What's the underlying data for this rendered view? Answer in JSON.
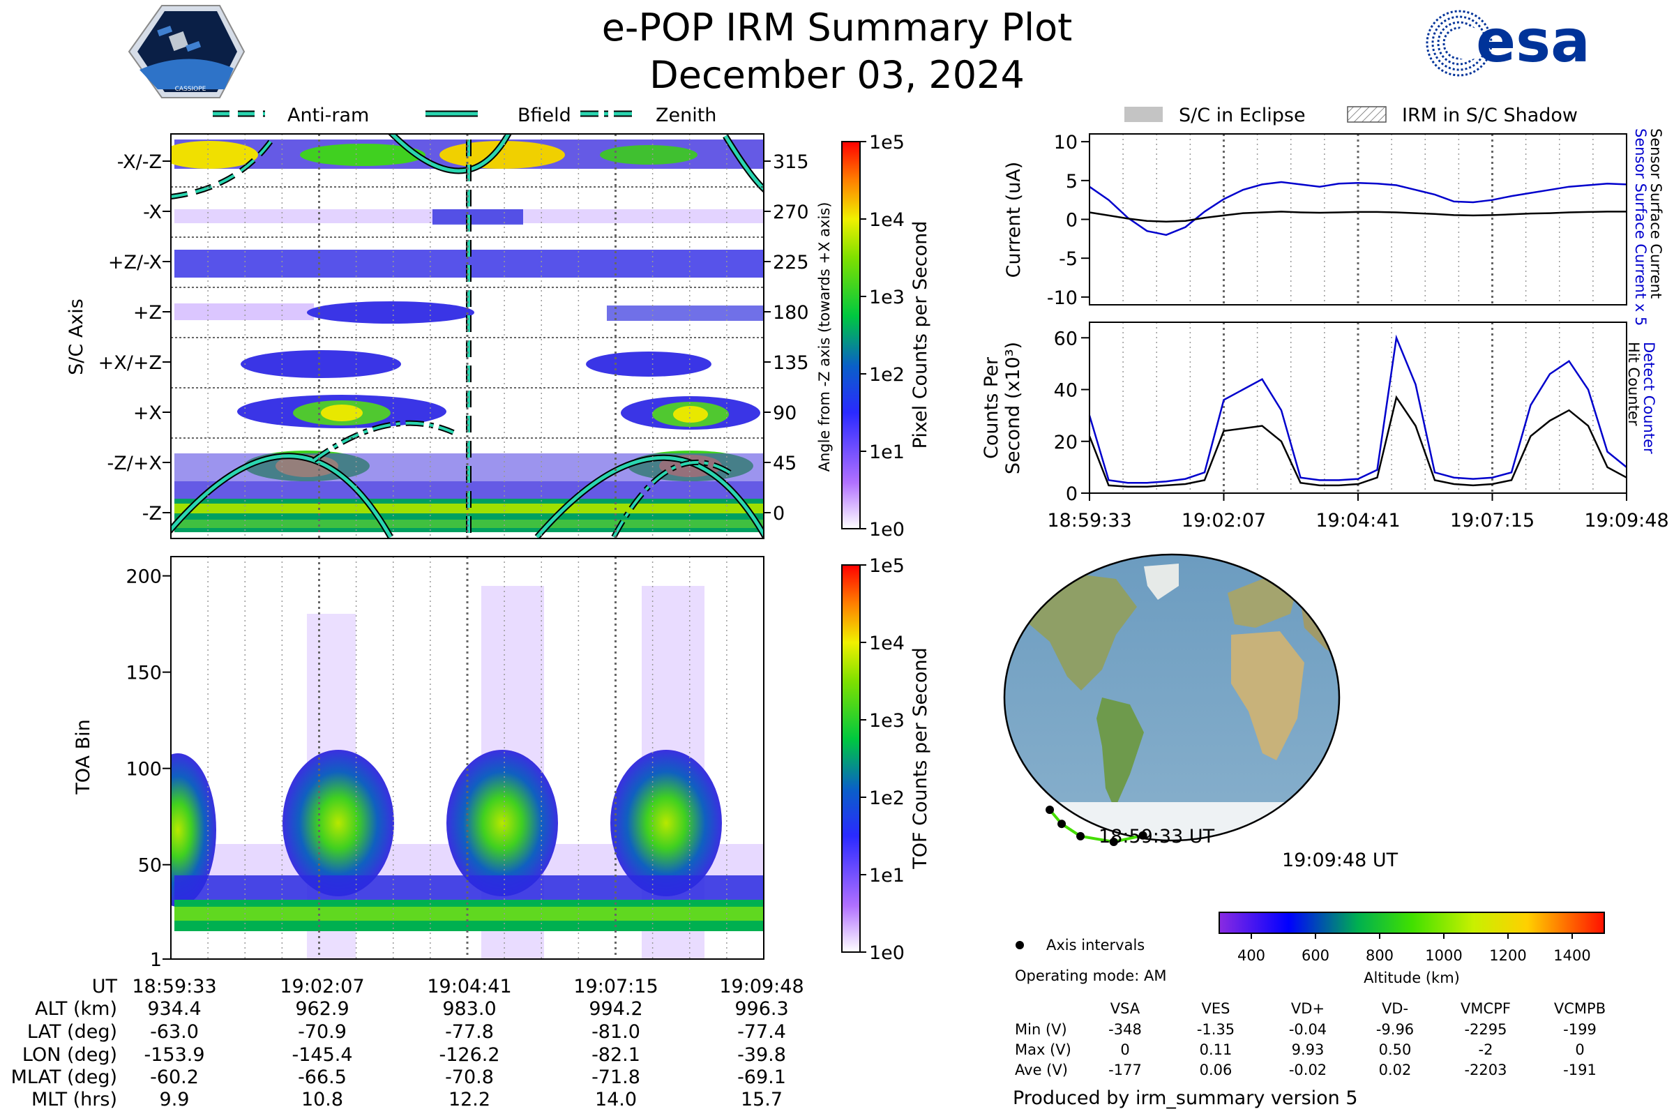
{
  "title": "e-POP IRM Summary Plot",
  "date": "December 03, 2024",
  "logos": {
    "left": "CASSIOPE",
    "right": "esa"
  },
  "legend_top_left": [
    "Anti-ram",
    "Bfield",
    "Zenith"
  ],
  "legend_top_right": [
    "S/C in Eclipse",
    "IRM in S/C Shadow"
  ],
  "colors": {
    "current_x5": "#0000cc",
    "current": "#000000",
    "track": "#44dd00",
    "guide": "#2ad6b0"
  },
  "chart_data": [
    {
      "id": "angle",
      "type": "heatmap",
      "ylabel": "S/C Axis",
      "right_label": "Angle from -Z axis (towards +X axis)",
      "axis_labels": [
        "-X/-Z",
        "-X",
        "+Z/-X",
        "+Z",
        "+X/+Z",
        "+X",
        "-Z/+X",
        "-Z"
      ],
      "angle_ticks": [
        "315",
        "270",
        "225",
        "180",
        "135",
        "90",
        "45",
        "0"
      ],
      "colorbar_label": "Pixel Counts per Second",
      "colorbar_ticks": [
        "1e5",
        "1e4",
        "1e3",
        "1e2",
        "1e1",
        "1e0"
      ]
    },
    {
      "id": "toa",
      "type": "heatmap",
      "ylabel": "TOA Bin",
      "yticks": [
        "200",
        "150",
        "100",
        "50",
        "1"
      ],
      "ylim": [
        1,
        210
      ],
      "colorbar_label": "TOF Counts per Second",
      "colorbar_ticks": [
        "1e5",
        "1e4",
        "1e3",
        "1e2",
        "1e1",
        "1e0"
      ]
    },
    {
      "id": "current",
      "type": "line",
      "ylabel": "Current (uA)",
      "ylim": [
        -11,
        11
      ],
      "yticks": [
        "10",
        "5",
        "0",
        "-5",
        "-10"
      ],
      "right_labels": [
        "Sensor Surface Current x 5",
        "Sensor Surface Current"
      ],
      "series": [
        {
          "name": "Sensor Surface Current x 5",
          "values": [
            4.2,
            2.5,
            0.2,
            -1.5,
            -2,
            -1,
            1,
            2.6,
            3.8,
            4.5,
            4.8,
            4.5,
            4.2,
            4.6,
            4.7,
            4.6,
            4.4,
            3.8,
            3.2,
            2.3,
            2.2,
            2.5,
            3,
            3.4,
            3.8,
            4.2,
            4.4,
            4.6,
            4.5
          ]
        },
        {
          "name": "Sensor Surface Current",
          "values": [
            0.9,
            0.5,
            0.1,
            -0.2,
            -0.3,
            -0.2,
            0.2,
            0.5,
            0.8,
            0.9,
            1,
            0.9,
            0.85,
            0.9,
            0.95,
            0.95,
            0.9,
            0.8,
            0.7,
            0.55,
            0.5,
            0.55,
            0.65,
            0.75,
            0.8,
            0.9,
            0.95,
            1,
            1
          ]
        }
      ]
    },
    {
      "id": "counts",
      "type": "line",
      "ylabel_lines": [
        "Counts Per",
        "Second (x10³)"
      ],
      "ylim": [
        0,
        66
      ],
      "yticks": [
        "60",
        "40",
        "20",
        "0"
      ],
      "right_labels": [
        "Detect Counter",
        "Hit Counter"
      ],
      "x_ticks": [
        "18:59:33",
        "19:02:07",
        "19:04:41",
        "19:07:15",
        "19:09:48"
      ],
      "series": [
        {
          "name": "Detect Counter",
          "values": [
            30,
            5,
            4,
            4,
            4.5,
            5.5,
            8,
            36,
            40,
            44,
            32,
            6,
            5,
            5,
            5.5,
            9,
            60,
            42,
            8,
            6,
            5.5,
            6,
            8,
            34,
            46,
            51,
            40,
            16,
            10
          ]
        },
        {
          "name": "Hit Counter",
          "values": [
            22,
            3,
            2.5,
            2.5,
            3,
            3.5,
            5,
            24,
            25,
            26,
            20,
            4,
            3,
            3,
            3.5,
            6,
            37,
            26,
            5,
            3.5,
            3,
            3.5,
            5,
            22,
            28,
            32,
            26,
            10,
            6
          ]
        }
      ]
    },
    {
      "id": "map",
      "type": "scatter",
      "start_label": "18:59:33 UT",
      "end_label": "19:09:48 UT",
      "track_lat": [
        -63.0,
        -70.9,
        -77.8,
        -81.0,
        -77.4
      ],
      "track_lon": [
        -153.9,
        -145.4,
        -126.2,
        -82.1,
        -39.8
      ],
      "altitude_label": "Altitude (km)",
      "altitude_ticks": [
        "400",
        "600",
        "800",
        "1000",
        "1200",
        "1400"
      ],
      "legend_marker": "Axis intervals"
    }
  ],
  "operating_mode": "Operating mode: AM",
  "voltages": {
    "headers": [
      "VSA",
      "VES",
      "VD+",
      "VD-",
      "VMCPF",
      "VCMPB"
    ],
    "rows": [
      {
        "label": "Min (V)",
        "values": [
          "-348",
          "-1.35",
          "-0.04",
          "-9.96",
          "-2295",
          "-199"
        ]
      },
      {
        "label": "Max (V)",
        "values": [
          "0",
          "0.11",
          "9.93",
          "0.50",
          "-2",
          "0"
        ]
      },
      {
        "label": "Ave (V)",
        "values": [
          "-177",
          "0.06",
          "-0.02",
          "0.02",
          "-2203",
          "-191"
        ]
      }
    ]
  },
  "time_table": {
    "labels": [
      "UT",
      "ALT (km)",
      "LAT (deg)",
      "LON (deg)",
      "MLAT (deg)",
      "MLT (hrs)"
    ],
    "columns": [
      {
        "UT": "18:59:33",
        "ALT": "934.4",
        "LAT": "-63.0",
        "LON": "-153.9",
        "MLAT": "-60.2",
        "MLT": "9.9"
      },
      {
        "UT": "19:02:07",
        "ALT": "962.9",
        "LAT": "-70.9",
        "LON": "-145.4",
        "MLAT": "-66.5",
        "MLT": "10.8"
      },
      {
        "UT": "19:04:41",
        "ALT": "983.0",
        "LAT": "-77.8",
        "LON": "-126.2",
        "MLAT": "-70.8",
        "MLT": "12.2"
      },
      {
        "UT": "19:07:15",
        "ALT": "994.2",
        "LAT": "-81.0",
        "LON": "-82.1",
        "MLAT": "-71.8",
        "MLT": "14.0"
      },
      {
        "UT": "19:09:48",
        "ALT": "996.3",
        "LAT": "-77.4",
        "LON": "-39.8",
        "MLAT": "-69.1",
        "MLT": "15.7"
      }
    ]
  },
  "footer": "Produced by irm_summary version 5"
}
